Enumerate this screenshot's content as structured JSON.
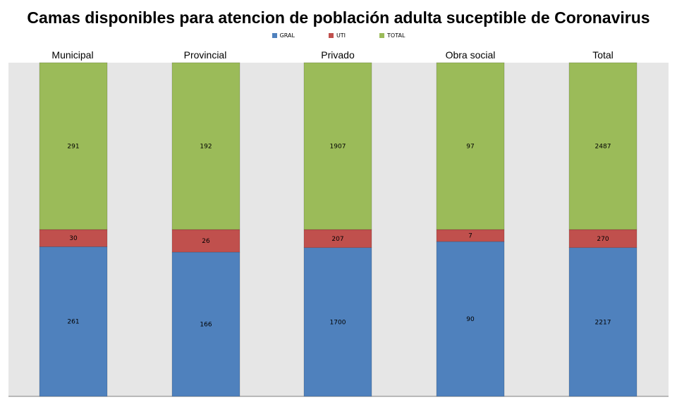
{
  "chart_data": {
    "type": "bar",
    "stacked": true,
    "title": "Camas disponibles para atencion de población adulta suceptible de Coronavirus",
    "categories": [
      "Municipal",
      "Provincial",
      "Privado",
      "Obra social",
      "Total"
    ],
    "series": [
      {
        "name": "GRAL",
        "color": "#4f81bd",
        "values": [
          261,
          166,
          1700,
          90,
          2217
        ]
      },
      {
        "name": "UTI",
        "color": "#c0504d",
        "values": [
          30,
          26,
          207,
          7,
          270
        ]
      },
      {
        "name": "TOTAL",
        "color": "#9bbb59",
        "values": [
          291,
          192,
          1907,
          97,
          2487
        ]
      }
    ],
    "normalized": true,
    "legend_position": "top",
    "grid": false,
    "plot_background": "#e6e6e6"
  }
}
